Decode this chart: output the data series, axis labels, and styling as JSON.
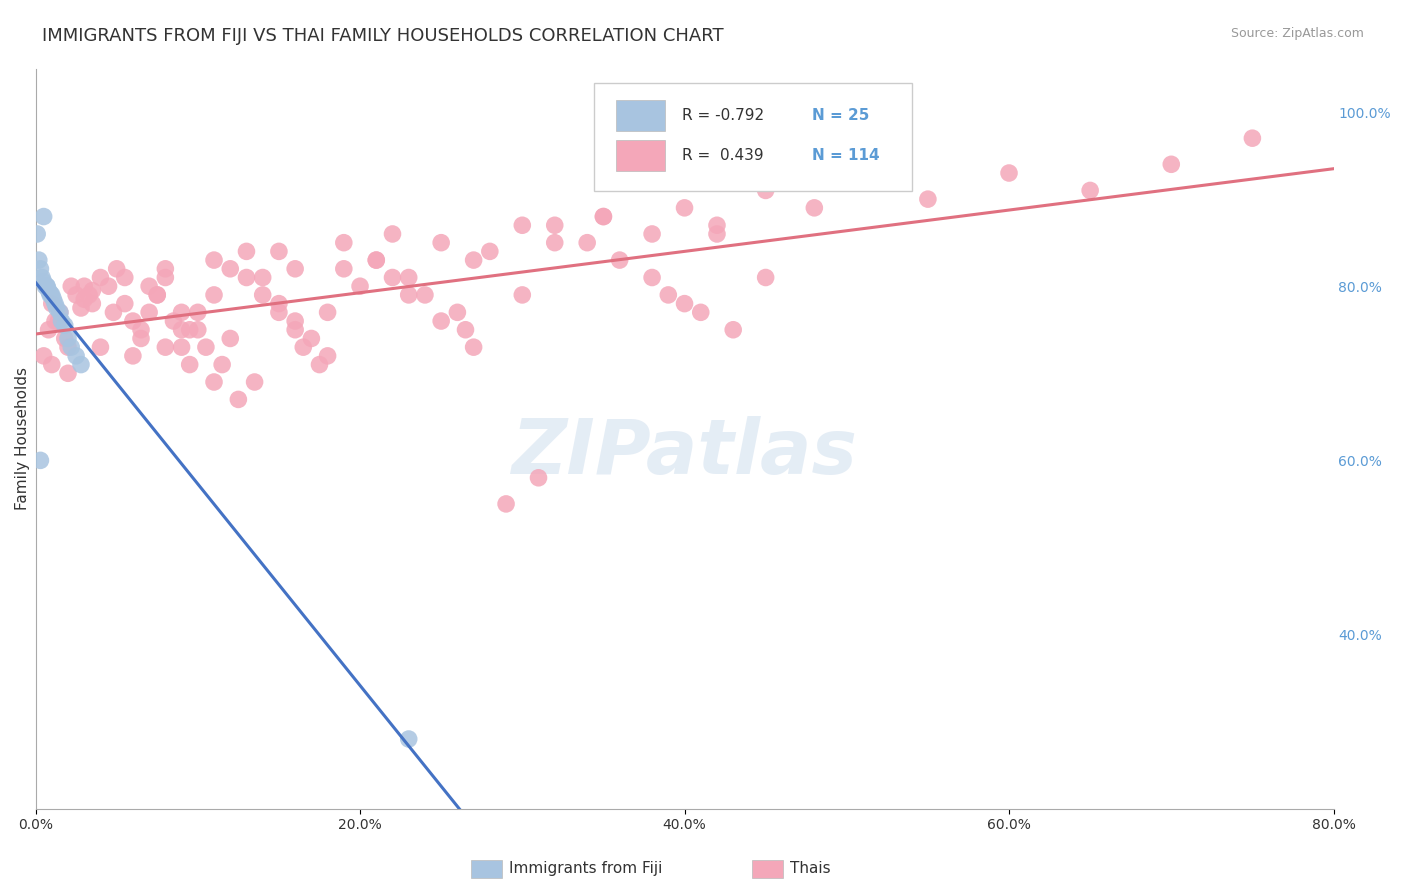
{
  "title": "IMMIGRANTS FROM FIJI VS THAI FAMILY HOUSEHOLDS CORRELATION CHART",
  "source_text": "Source: ZipAtlas.com",
  "ylabel": "Family Households",
  "ytick_right_labels": [
    "100.0%",
    "80.0%",
    "60.0%",
    "40.0%"
  ],
  "ytick_right_positions": [
    1.0,
    0.8,
    0.6,
    0.4
  ],
  "fiji_color": "#a8c4e0",
  "thai_color": "#f4a7b9",
  "fiji_line_color": "#4472c4",
  "thai_line_color": "#e07080",
  "legend_fiji_r": "-0.792",
  "legend_fiji_n": "25",
  "legend_thai_r": "0.439",
  "legend_thai_n": "114",
  "fiji_points_x": [
    0.001,
    0.002,
    0.003,
    0.004,
    0.005,
    0.006,
    0.007,
    0.008,
    0.009,
    0.01,
    0.011,
    0.012,
    0.013,
    0.015,
    0.016,
    0.018,
    0.02,
    0.022,
    0.025,
    0.028,
    0.005,
    0.007,
    0.009,
    0.003,
    0.23
  ],
  "fiji_points_y": [
    0.86,
    0.83,
    0.82,
    0.81,
    0.805,
    0.8,
    0.8,
    0.795,
    0.792,
    0.79,
    0.785,
    0.78,
    0.775,
    0.77,
    0.76,
    0.755,
    0.74,
    0.73,
    0.72,
    0.71,
    0.88,
    0.8,
    0.79,
    0.6,
    0.28
  ],
  "thai_points_x": [
    0.005,
    0.008,
    0.01,
    0.012,
    0.015,
    0.018,
    0.02,
    0.022,
    0.025,
    0.028,
    0.03,
    0.035,
    0.04,
    0.045,
    0.05,
    0.055,
    0.06,
    0.065,
    0.07,
    0.075,
    0.08,
    0.085,
    0.09,
    0.095,
    0.1,
    0.11,
    0.12,
    0.13,
    0.14,
    0.15,
    0.16,
    0.17,
    0.18,
    0.19,
    0.2,
    0.21,
    0.22,
    0.23,
    0.25,
    0.27,
    0.3,
    0.32,
    0.35,
    0.38,
    0.4,
    0.42,
    0.45,
    0.48,
    0.5,
    0.55,
    0.6,
    0.65,
    0.7,
    0.75,
    0.03,
    0.08,
    0.15,
    0.22,
    0.35,
    0.5,
    0.01,
    0.04,
    0.09,
    0.18,
    0.3,
    0.45,
    0.02,
    0.06,
    0.12,
    0.25,
    0.4,
    0.014,
    0.035,
    0.07,
    0.16,
    0.28,
    0.42,
    0.033,
    0.055,
    0.11,
    0.19,
    0.32,
    0.048,
    0.075,
    0.13,
    0.21,
    0.34,
    0.065,
    0.09,
    0.14,
    0.23,
    0.36,
    0.08,
    0.1,
    0.15,
    0.24,
    0.38,
    0.095,
    0.105,
    0.16,
    0.26,
    0.39,
    0.11,
    0.115,
    0.165,
    0.265,
    0.41,
    0.125,
    0.135,
    0.175,
    0.27,
    0.43,
    0.29,
    0.31
  ],
  "thai_points_y": [
    0.72,
    0.75,
    0.78,
    0.76,
    0.77,
    0.74,
    0.73,
    0.8,
    0.79,
    0.775,
    0.785,
    0.795,
    0.81,
    0.8,
    0.82,
    0.78,
    0.76,
    0.74,
    0.77,
    0.79,
    0.81,
    0.76,
    0.73,
    0.75,
    0.77,
    0.79,
    0.82,
    0.84,
    0.81,
    0.78,
    0.76,
    0.74,
    0.72,
    0.82,
    0.8,
    0.83,
    0.81,
    0.79,
    0.85,
    0.83,
    0.87,
    0.85,
    0.88,
    0.86,
    0.89,
    0.87,
    0.91,
    0.89,
    0.92,
    0.9,
    0.93,
    0.91,
    0.94,
    0.97,
    0.8,
    0.82,
    0.84,
    0.86,
    0.88,
    0.92,
    0.71,
    0.73,
    0.75,
    0.77,
    0.79,
    0.81,
    0.7,
    0.72,
    0.74,
    0.76,
    0.78,
    0.76,
    0.78,
    0.8,
    0.82,
    0.84,
    0.86,
    0.79,
    0.81,
    0.83,
    0.85,
    0.87,
    0.77,
    0.79,
    0.81,
    0.83,
    0.85,
    0.75,
    0.77,
    0.79,
    0.81,
    0.83,
    0.73,
    0.75,
    0.77,
    0.79,
    0.81,
    0.71,
    0.73,
    0.75,
    0.77,
    0.79,
    0.69,
    0.71,
    0.73,
    0.75,
    0.77,
    0.67,
    0.69,
    0.71,
    0.73,
    0.75,
    0.55,
    0.58
  ],
  "xlim": [
    0.0,
    0.8
  ],
  "ylim": [
    0.2,
    1.05
  ],
  "background_color": "#ffffff",
  "grid_color": "#cccccc",
  "title_fontsize": 13,
  "axis_label_fontsize": 11,
  "tick_fontsize": 10
}
